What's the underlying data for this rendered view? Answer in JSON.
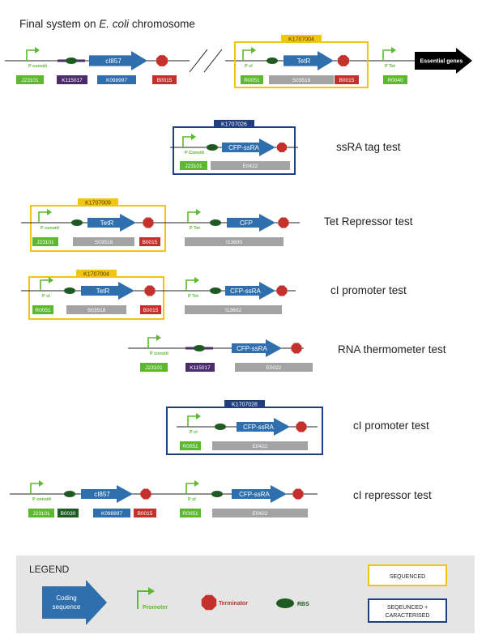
{
  "title": {
    "prefix": "Final system on ",
    "organism": "E. coli",
    "suffix": " chromosome"
  },
  "colors": {
    "promoter": "#5cb82e",
    "coding": "#2f6fad",
    "terminator": "#c4302b",
    "rbs": "#1e5a22",
    "rbs_thermometer": "#4b2a6e",
    "sequenced": "#f2c511",
    "sequenced_characterised": "#1f3f80",
    "gray_box": "#a3a3a3",
    "legend_bg": "#e5e5e5"
  },
  "full_system": {
    "parts": [
      {
        "kind": "promoter",
        "label": "P constit",
        "code": "J23101"
      },
      {
        "kind": "rbs-thermo",
        "label": "",
        "code": "K115017"
      },
      {
        "kind": "coding",
        "label": "cI857",
        "code": "K098997"
      },
      {
        "kind": "terminator",
        "label": "",
        "code": "B0015"
      },
      {
        "kind": "promoter",
        "label": "P cI",
        "code": "R0051"
      },
      {
        "kind": "rbs",
        "label": "",
        "code": ""
      },
      {
        "kind": "coding",
        "label": "TetR",
        "code": "S03518"
      },
      {
        "kind": "terminator",
        "label": "",
        "code": "B0015"
      },
      {
        "kind": "promoter",
        "label": "P Tet",
        "code": "R0040"
      },
      {
        "kind": "essential",
        "label": "Essential genes",
        "code": ""
      }
    ],
    "box_label": "K1707004"
  },
  "tests": [
    {
      "name": "ssRA tag test",
      "box_label": "K1707026",
      "box_type": "sequenced_characterised",
      "parts": [
        {
          "kind": "promoter",
          "label": "P Constit",
          "code": "J23101"
        },
        {
          "kind": "rbs",
          "label": "",
          "code": ""
        },
        {
          "kind": "coding",
          "label": "CFP-ssRA",
          "code": "E0422"
        },
        {
          "kind": "terminator",
          "label": "",
          "code": ""
        }
      ]
    },
    {
      "name": "Tet Repressor test",
      "box_label": "K1707009",
      "box_type": "sequenced",
      "parts": [
        {
          "kind": "promoter",
          "label": "P constit",
          "code": "J23101"
        },
        {
          "kind": "rbs",
          "label": "",
          "code": ""
        },
        {
          "kind": "coding",
          "label": "TetR",
          "code": "S03518"
        },
        {
          "kind": "terminator",
          "label": "",
          "code": "B0015"
        },
        {
          "kind": "promoter",
          "label": "P Tet",
          "code": ""
        },
        {
          "kind": "rbs",
          "label": "",
          "code": ""
        },
        {
          "kind": "coding",
          "label": "CFP",
          "code": "I13600"
        },
        {
          "kind": "terminator",
          "label": "",
          "code": ""
        }
      ]
    },
    {
      "name": "cI promoter test",
      "box_label": "K1707004",
      "box_type": "sequenced",
      "parts": [
        {
          "kind": "promoter",
          "label": "P cI",
          "code": "R0051"
        },
        {
          "kind": "rbs",
          "label": "",
          "code": ""
        },
        {
          "kind": "coding",
          "label": "TetR",
          "code": "S03518"
        },
        {
          "kind": "terminator",
          "label": "",
          "code": "B0015"
        },
        {
          "kind": "promoter",
          "label": "P Tet",
          "code": ""
        },
        {
          "kind": "rbs",
          "label": "",
          "code": ""
        },
        {
          "kind": "coding",
          "label": "CFP-ssRA",
          "code": "I13602"
        },
        {
          "kind": "terminator",
          "label": "",
          "code": ""
        }
      ]
    },
    {
      "name": "RNA thermometer test",
      "box_label": "",
      "box_type": "",
      "parts": [
        {
          "kind": "promoter",
          "label": "P constit",
          "code": "J23101"
        },
        {
          "kind": "rbs-thermo",
          "label": "",
          "code": "K115017"
        },
        {
          "kind": "coding",
          "label": "CFP-ssRA",
          "code": "E0022"
        },
        {
          "kind": "terminator",
          "label": "",
          "code": ""
        }
      ]
    },
    {
      "name": "cI promoter test",
      "box_label": "K1707028",
      "box_type": "sequenced_characterised",
      "parts": [
        {
          "kind": "promoter",
          "label": "P cI",
          "code": "R0051"
        },
        {
          "kind": "rbs",
          "label": "",
          "code": ""
        },
        {
          "kind": "coding",
          "label": "CFP-ssRA",
          "code": "E0422"
        },
        {
          "kind": "terminator",
          "label": "",
          "code": ""
        }
      ]
    },
    {
      "name": "cI repressor test",
      "box_label": "",
      "box_type": "",
      "parts": [
        {
          "kind": "promoter",
          "label": "P constit",
          "code": "J23101"
        },
        {
          "kind": "rbs",
          "label": "",
          "code": "B0030"
        },
        {
          "kind": "coding",
          "label": "cI857",
          "code": "K098997"
        },
        {
          "kind": "terminator",
          "label": "",
          "code": "B0015"
        },
        {
          "kind": "promoter",
          "label": "P cI",
          "code": "R0051"
        },
        {
          "kind": "rbs",
          "label": "",
          "code": ""
        },
        {
          "kind": "coding",
          "label": "CFP-ssRA",
          "code": "E0422"
        },
        {
          "kind": "terminator",
          "label": "",
          "code": ""
        }
      ]
    }
  ],
  "legend": {
    "title": "LEGEND",
    "coding_label_line1": "Coding",
    "coding_label_line2": "sequence",
    "promoter_label": "Promoter",
    "terminator_label": "Terminator",
    "rbs_label": "RBS",
    "sequenced_label": "SEQUENCED",
    "seq_char_label_line1": "SEQEUNCED +",
    "seq_char_label_line2": "CARACTERISED"
  }
}
